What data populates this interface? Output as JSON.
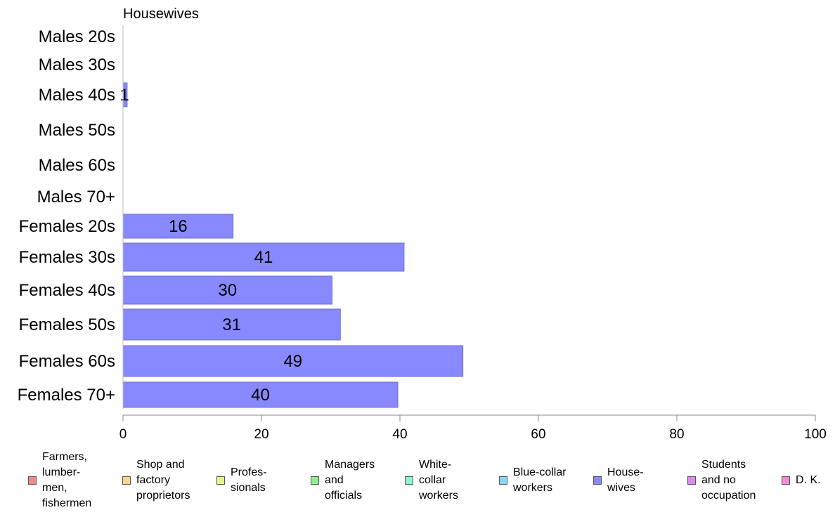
{
  "chart_data": {
    "type": "bar",
    "orientation": "horizontal",
    "title": "Housewives",
    "categories": [
      "Males 20s",
      "Males 30s",
      "Males 40s",
      "Males 50s",
      "Males 60s",
      "Males 70+",
      "Females 20s",
      "Females 30s",
      "Females 40s",
      "Females 50s",
      "Females 60s",
      "Females 70+"
    ],
    "values": [
      0,
      0,
      0.6,
      0,
      0,
      0,
      15.9,
      40.6,
      30.2,
      31.4,
      49.1,
      39.7
    ],
    "labels": [
      "",
      "",
      "1",
      "",
      "",
      "",
      "16",
      "41",
      "30",
      "31",
      "49",
      "40"
    ],
    "xlim": [
      0,
      100
    ],
    "xticks": [
      0,
      20,
      40,
      60,
      80,
      100
    ],
    "xlabel": "",
    "ylabel": "",
    "grid": false,
    "bar_color": "#8888ff",
    "legend_position": "bottom",
    "legend": [
      {
        "label": "Farmers,\nlumber-\nmen,\nfishermen",
        "color": "#f08c8c"
      },
      {
        "label": "Shop and\nfactory\nproprietors",
        "color": "#f6d68a"
      },
      {
        "label": "Profes-\nsionals",
        "color": "#e2f68a"
      },
      {
        "label": "Managers\nand\nofficials",
        "color": "#8cf08c"
      },
      {
        "label": "White-\ncollar\nworkers",
        "color": "#8af6d6"
      },
      {
        "label": "Blue-collar\nworkers",
        "color": "#8ad6f6"
      },
      {
        "label": "House-\nwives",
        "color": "#8888ff"
      },
      {
        "label": "Students\nand no\noccupation",
        "color": "#e088f6"
      },
      {
        "label": "D. K.",
        "color": "#f688d6"
      }
    ]
  }
}
